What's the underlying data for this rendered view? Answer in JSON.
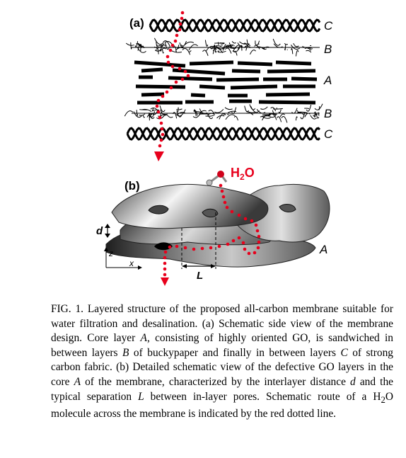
{
  "figure": {
    "panel_a_label": "(a)",
    "panel_b_label": "(b)",
    "layer_labels": [
      "C",
      "B",
      "A",
      "B",
      "C"
    ],
    "layer_label_b": "A",
    "h2o_label": "H",
    "h2o_sub": "2",
    "h2o_tail": "O",
    "dim_d": "d",
    "dim_L": "L",
    "axis_z": "z",
    "axis_x": "x"
  },
  "caption": {
    "fig_label": "FIG. 1.",
    "s1": " Layered structure of the proposed all-carbon membrane suitable for water filtration and desalination. (a) Schematic side view of the membrane design. Core layer ",
    "A1": "A",
    "s2": ", consisting of highly oriented GO, is sandwiched in between layers ",
    "B1": "B",
    "s3": " of buckypaper and finally in between layers ",
    "C1": "C",
    "s4": " of strong carbon fabric. (b) Detailed schematic view of the defective GO layers in the core ",
    "A2": "A",
    "s5": " of the membrane, characterized by the interlayer distance ",
    "d": "d",
    "s6": " and the typical separation ",
    "L": "L",
    "s7": " between in-layer pores. Schematic route of a H",
    "sub2": "2",
    "s8": "O molecule across the membrane is indicated by the red dotted line."
  },
  "colors": {
    "route": "#e8001c",
    "ink": "#000000"
  }
}
